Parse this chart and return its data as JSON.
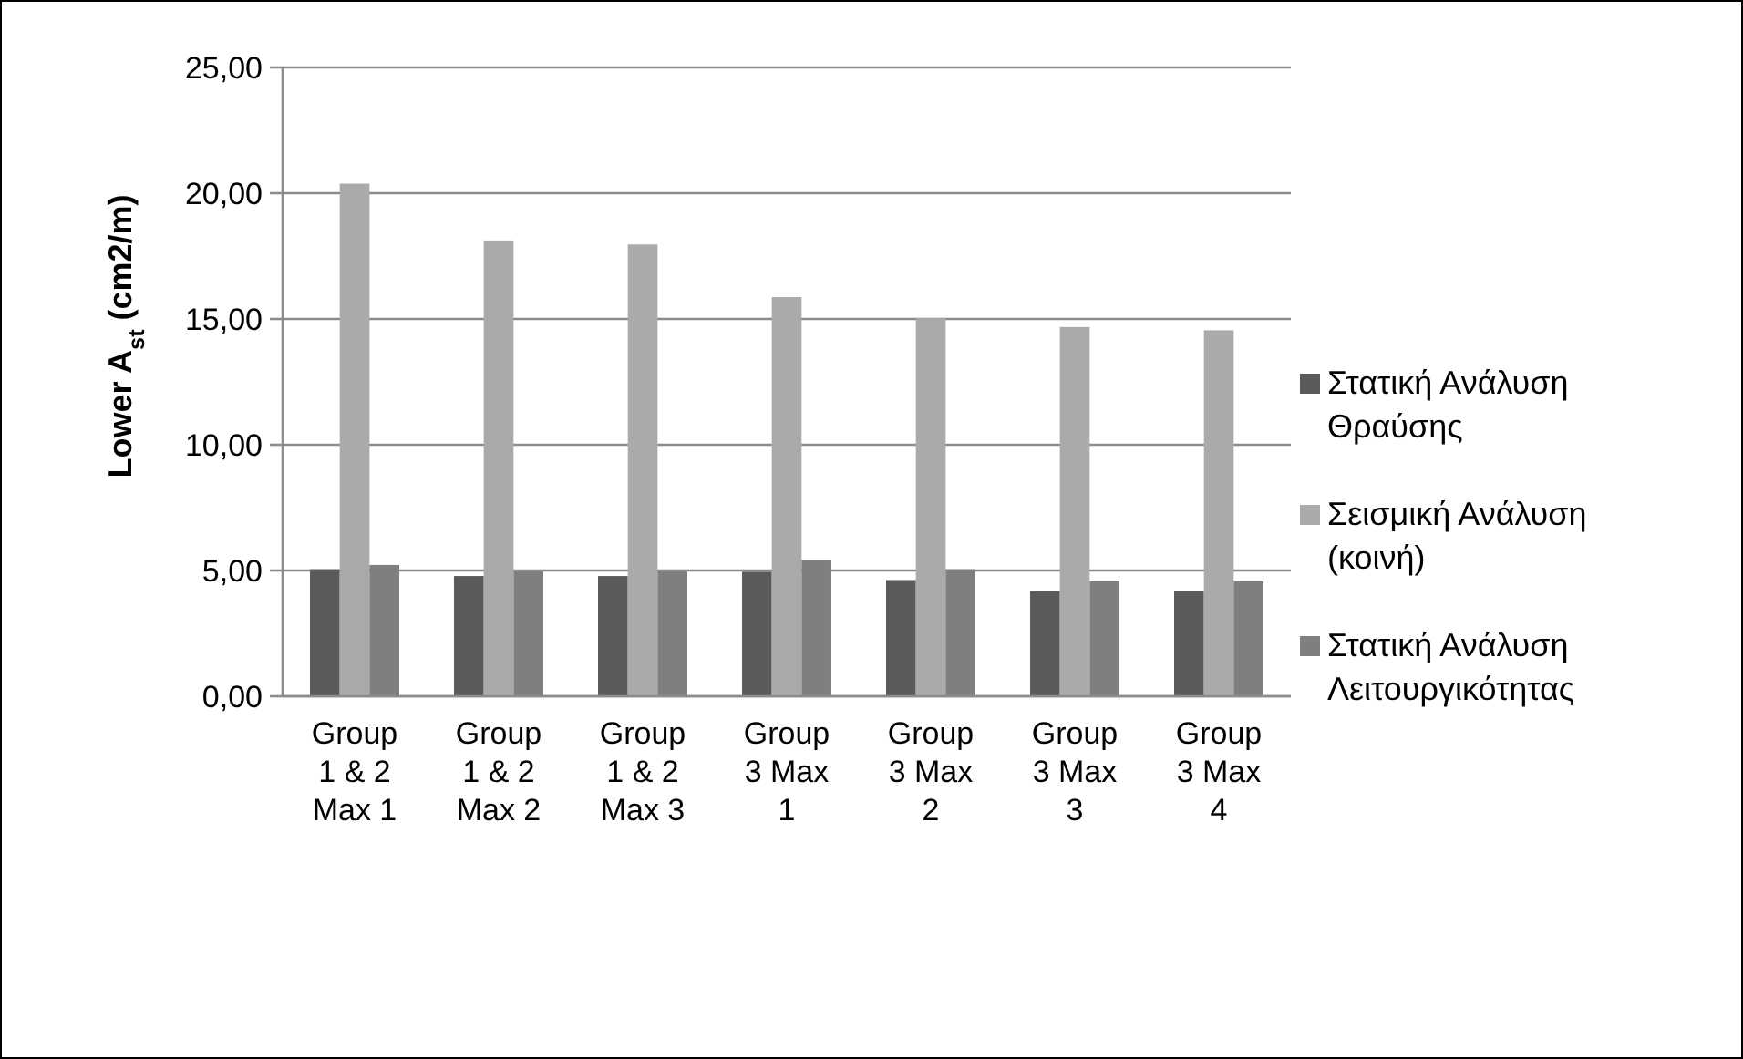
{
  "chart_data": {
    "type": "bar",
    "ylabel": "Lower A$_{st}$ (cm2/m)",
    "categories": [
      "Group 1 & 2 Max 1",
      "Group 1 & 2 Max 2",
      "Group 1 & 2 Max 3",
      "Group 3 Max 1",
      "Group 3 Max 2",
      "Group 3 Max 3",
      "Group 3 Max 4"
    ],
    "series": [
      {
        "name": "Στατική Ανάλυση Θραύσης",
        "color": "#5a5a5a",
        "values": [
          5.05,
          4.78,
          4.78,
          4.95,
          4.62,
          4.19,
          4.19
        ]
      },
      {
        "name": "Σεισμική Ανάλυση (κοινή)",
        "color": "#aaaaaa",
        "values": [
          20.38,
          18.12,
          17.96,
          15.87,
          15.03,
          14.68,
          14.55
        ]
      },
      {
        "name": "Στατική Ανάλυση Λειτουργικότητας",
        "color": "#7f7f7f",
        "values": [
          5.22,
          5.0,
          4.97,
          5.43,
          5.05,
          4.57,
          4.57
        ]
      }
    ],
    "ylim": [
      0,
      25
    ],
    "yticks": [
      {
        "value": 0,
        "label": "0,00"
      },
      {
        "value": 5,
        "label": "5,00"
      },
      {
        "value": 10,
        "label": "10,00"
      },
      {
        "value": 15,
        "label": "15,00"
      },
      {
        "value": 20,
        "label": "20,00"
      },
      {
        "value": 25,
        "label": "25,00"
      }
    ],
    "grid": "y",
    "legend": "right"
  }
}
